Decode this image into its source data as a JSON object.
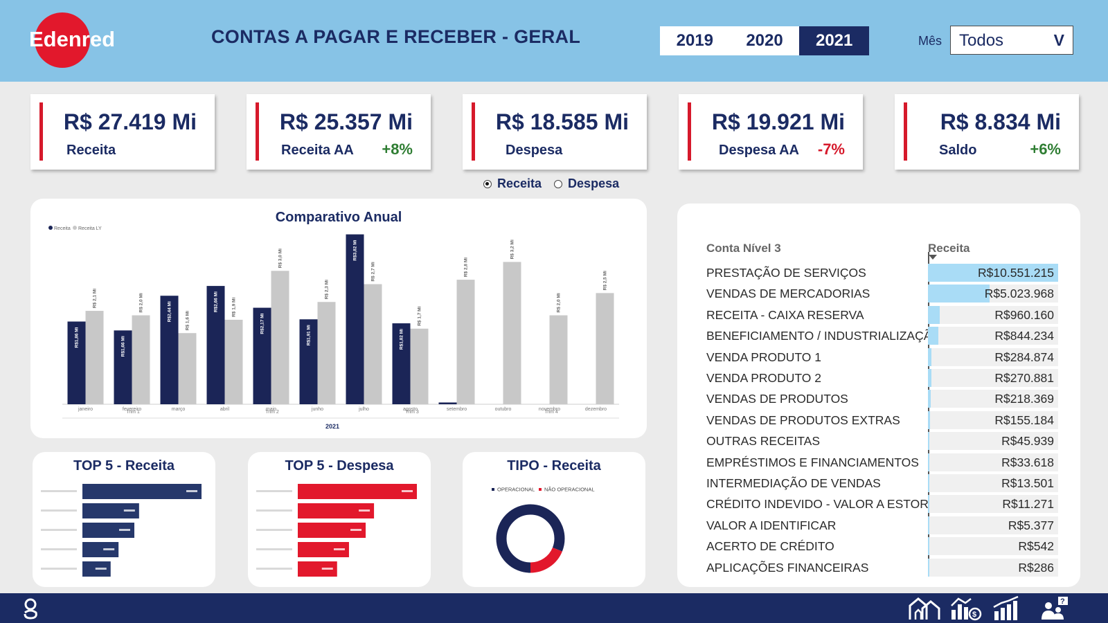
{
  "header": {
    "logo_text": "Edenred",
    "title": "CONTAS A PAGAR E RECEBER - GERAL",
    "years": [
      "2019",
      "2020",
      "2021"
    ],
    "active_year": "2021",
    "mes_label": "Mês",
    "mes_value": "Todos",
    "mes_chevron": "V"
  },
  "kpis": [
    {
      "value": "R$ 27.419 Mi",
      "label": "Receita",
      "delta": ""
    },
    {
      "value": "R$ 25.357 Mi",
      "label": "Receita AA",
      "delta": "+8%"
    },
    {
      "value": "R$ 18.585 Mi",
      "label": "Despesa",
      "delta": ""
    },
    {
      "value": "R$ 19.921 Mi",
      "label": "Despesa AA",
      "delta": "-7%"
    },
    {
      "value": "R$ 8.834 Mi",
      "label": "Saldo",
      "delta": "+6%"
    }
  ],
  "toggle": {
    "options": [
      "Receita",
      "Despesa"
    ],
    "selected": "Receita"
  },
  "annual_chart": {
    "title": "Comparativo Anual",
    "legend": [
      "Receita",
      "Receita LY"
    ],
    "year_label": "2021",
    "quarters": [
      "Trim 1",
      "Trim 2",
      "Trim 3",
      "Trim 4"
    ]
  },
  "chart_data": [
    {
      "type": "bar",
      "title": "Comparativo Anual",
      "xlabel": "2021",
      "categories": [
        "janeiro",
        "fevereiro",
        "março",
        "abril",
        "maio",
        "junho",
        "julho",
        "agosto",
        "setembro",
        "outubro",
        "novembro",
        "dezembro"
      ],
      "series": [
        {
          "name": "Receita",
          "color": "#1b2557",
          "values": [
            1.86,
            1.66,
            2.44,
            2.66,
            2.17,
            1.91,
            3.82,
            1.82,
            0.04,
            null,
            null,
            null
          ],
          "labels": [
            "R$1,86 Mi",
            "R$1,66 Mi",
            "R$2,44 Mi",
            "R$2,66 Mi",
            "R$2,17 Mi",
            "R$1,91 Mi",
            "R$3,82 Mi",
            "R$1,82 Mi",
            "",
            "",
            "",
            ""
          ]
        },
        {
          "name": "Receita LY",
          "color": "#c8c8c8",
          "values": [
            2.1,
            2.0,
            1.6,
            1.9,
            3.0,
            2.3,
            2.7,
            1.7,
            2.8,
            3.2,
            2.0,
            2.5
          ],
          "labels": [
            "R$ 2,1 Mi",
            "R$ 2,0 Mi",
            "R$ 1,6 Mi",
            "R$ 1,9 Mi",
            "R$ 3,0 Mi",
            "R$ 2,3 Mi",
            "R$ 2,7 Mi",
            "R$ 1,7 Mi",
            "R$ 2,8 Mi",
            "R$ 3,2 Mi",
            "R$ 2,0 Mi",
            "R$ 2,5 Mi"
          ]
        }
      ],
      "ylim": [
        0,
        4
      ],
      "legend": "top-left"
    },
    {
      "type": "bar",
      "orientation": "horizontal",
      "title": "TOP 5 - Receita",
      "categories": [
        "",
        "",
        "",
        "",
        ""
      ],
      "values": [
        10.55,
        5.02,
        4.6,
        3.2,
        2.5
      ],
      "color": "#26386b"
    },
    {
      "type": "bar",
      "orientation": "horizontal",
      "title": "TOP 5 - Despesa",
      "categories": [
        "",
        "",
        "",
        "",
        ""
      ],
      "values": [
        10.0,
        6.4,
        5.7,
        4.3,
        3.3
      ],
      "color": "#e2182c"
    },
    {
      "type": "pie",
      "donut": true,
      "title": "TIPO - Receita",
      "categories": [
        "OPERACIONAL",
        "NÃO OPERACIONAL"
      ],
      "values": [
        81,
        19
      ],
      "colors": [
        "#1b2557",
        "#e2182c"
      ]
    }
  ],
  "top5_receita": {
    "title": "TOP 5 - Receita"
  },
  "top5_despesa": {
    "title": "TOP 5 - Despesa"
  },
  "tipo": {
    "title": "TIPO - Receita",
    "legend": [
      "OPERACIONAL",
      "NÃO OPERACIONAL"
    ]
  },
  "table": {
    "col_name": "Conta Nível 3",
    "col_value": "Receita",
    "rows": [
      {
        "name": "PRESTAÇÃO DE SERVIÇOS",
        "value": "R$10.551.215",
        "share": 1.0
      },
      {
        "name": "VENDAS DE MERCADORIAS",
        "value": "R$5.023.968",
        "share": 0.476
      },
      {
        "name": "RECEITA - CAIXA RESERVA",
        "value": "R$960.160",
        "share": 0.091
      },
      {
        "name": "BENEFICIAMENTO / INDUSTRIALIZAÇÃO",
        "value": "R$844.234",
        "share": 0.08
      },
      {
        "name": "VENDA PRODUTO 1",
        "value": "R$284.874",
        "share": 0.027
      },
      {
        "name": "VENDA PRODUTO 2",
        "value": "R$270.881",
        "share": 0.026
      },
      {
        "name": "VENDAS DE PRODUTOS",
        "value": "R$218.369",
        "share": 0.021
      },
      {
        "name": "VENDAS DE PRODUTOS EXTRAS",
        "value": "R$155.184",
        "share": 0.015
      },
      {
        "name": "OUTRAS RECEITAS",
        "value": "R$45.939",
        "share": 0.004
      },
      {
        "name": "EMPRÉSTIMOS E FINANCIAMENTOS",
        "value": "R$33.618",
        "share": 0.003
      },
      {
        "name": "INTERMEDIAÇÃO DE VENDAS",
        "value": "R$13.501",
        "share": 0.001
      },
      {
        "name": "CRÉDITO INDEVIDO - VALOR A ESTORN",
        "value": "R$11.271",
        "share": 0.001
      },
      {
        "name": "VALOR A IDENTIFICAR",
        "value": "R$5.377",
        "share": 0.0005
      },
      {
        "name": "ACERTO DE CRÉDITO",
        "value": "R$542",
        "share": 0.0001
      },
      {
        "name": "APLICAÇÕES FINANCEIRAS",
        "value": "R$286",
        "share": 0.0
      }
    ]
  },
  "footer": {
    "brand_icon": "g-logo-icon",
    "nav_icons": [
      "home-icon",
      "finance-chart-icon",
      "growth-chart-icon",
      "help-users-icon"
    ]
  },
  "colors": {
    "navy": "#1b2b63",
    "red": "#d6192b",
    "sky": "#87c3e6",
    "green": "#2e7d32"
  }
}
